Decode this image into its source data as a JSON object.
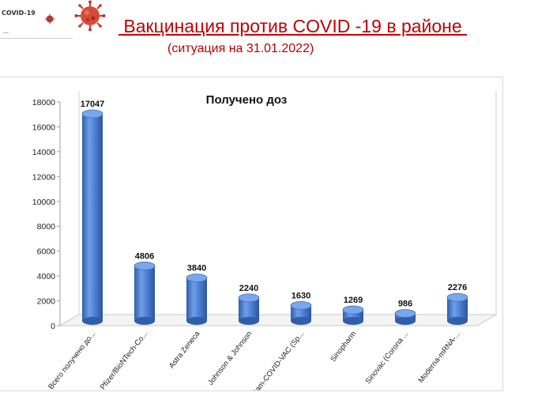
{
  "header": {
    "logo_text": "COVID-19",
    "logo_dash": "—",
    "title": " Вакцинация против COVID -19 в районе ",
    "subtitle": "(ситуация на 31.01.2022)"
  },
  "colors": {
    "title": "#c00000",
    "bar": "#4f81d6",
    "bar_dark": "#2f5fa8",
    "virus": "#c0392b"
  },
  "chart_data": {
    "type": "bar",
    "title": "Получено доз",
    "categories": [
      "Всего получено до...",
      "Pfizer/BioNTech-Co...",
      "Astra Zeneca",
      "Johnson & Johnson",
      "Gam-COVID-VAC (Sp...",
      "Sinopharm",
      "Sinovac (Corona ...",
      "Moderna-mRNA-..."
    ],
    "values": [
      17047,
      4806,
      3840,
      2240,
      1630,
      1269,
      986,
      2276
    ],
    "data_labels": [
      "17047",
      "4806",
      "3840",
      "2240",
      "1630",
      "1269",
      "986",
      "2276"
    ],
    "ylim": [
      0,
      18000
    ],
    "yticks": [
      "0",
      "2000",
      "4000",
      "6000",
      "8000",
      "10000",
      "12000",
      "14000",
      "16000",
      "18000"
    ],
    "ytick_values": [
      0,
      2000,
      4000,
      6000,
      8000,
      10000,
      12000,
      14000,
      16000,
      18000
    ],
    "xlabel": "",
    "ylabel": "",
    "grid": false,
    "legend": "none",
    "style": "3d-cylinder"
  }
}
